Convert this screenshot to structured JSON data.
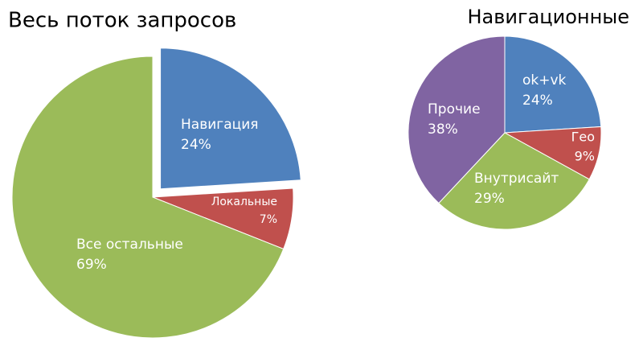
{
  "chart_data": [
    {
      "type": "pie",
      "title": "Весь поток запросов",
      "categories": [
        "Навигация",
        "Локальные",
        "Все остальные"
      ],
      "values": [
        24,
        7,
        69
      ],
      "value_labels": [
        "24%",
        "7%",
        "69%"
      ],
      "colors": [
        "#4f81bd",
        "#c0504d",
        "#9bbb59"
      ]
    },
    {
      "type": "pie",
      "title": "Навигационные",
      "categories": [
        "ok+vk",
        "Гео",
        "Внутрисайт",
        "Прочие"
      ],
      "values": [
        24,
        9,
        29,
        38
      ],
      "value_labels": [
        "24%",
        "9%",
        "29%",
        "38%"
      ],
      "colors": [
        "#4f81bd",
        "#c0504d",
        "#9bbb59",
        "#8064a2"
      ]
    }
  ]
}
